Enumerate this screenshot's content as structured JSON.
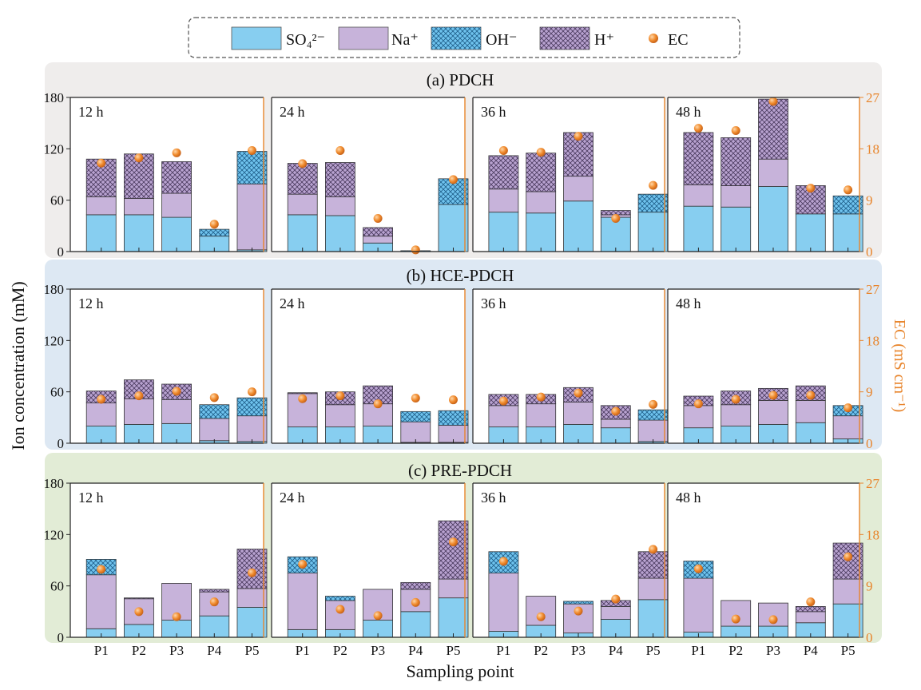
{
  "colors": {
    "so4": "#87CEF0",
    "na": "#C7B3DA",
    "oh_fill": "#6FC3EE",
    "h_fill": "#B8A2D0",
    "ec": "#F08A2C",
    "axis_right": "#E8852C",
    "bg_a": "#EFEDEC",
    "bg_b": "#DDE8F3",
    "bg_c": "#E2ECD6"
  },
  "legend": {
    "so4": "SO₄²⁻",
    "na": "Na⁺",
    "oh": "OH⁻",
    "h": "H⁺",
    "ec": "EC"
  },
  "axes": {
    "y_left_label": "Ion concentration (mM)",
    "y_right_label": "EC (mS cm⁻¹)",
    "x_label": "Sampling point"
  },
  "chart_data": {
    "type": "bar",
    "stacked": true,
    "categories": [
      "P1",
      "P2",
      "P3",
      "P4",
      "P5"
    ],
    "series_order": [
      "SO4",
      "Na",
      "OH",
      "H"
    ],
    "ylim_left": [
      0,
      180
    ],
    "yticks_left": [
      0,
      60,
      120,
      180
    ],
    "ylim_right": [
      0,
      27
    ],
    "yticks_right": [
      0,
      9,
      18,
      27
    ],
    "rows": [
      {
        "title": "(a) PDCH",
        "panels": [
          {
            "time": "12 h",
            "SO4": [
              43,
              43,
              40,
              18,
              2
            ],
            "Na": [
              21,
              19,
              28,
              0,
              77
            ],
            "OH": [
              0,
              0,
              0,
              8,
              38
            ],
            "H": [
              44,
              52,
              37,
              0,
              0
            ],
            "EC": [
              15.5,
              16.4,
              17.3,
              4.8,
              17.7
            ]
          },
          {
            "time": "24 h",
            "SO4": [
              43,
              42,
              10,
              0,
              55
            ],
            "Na": [
              24,
              22,
              8,
              0,
              0
            ],
            "OH": [
              0,
              0,
              0,
              1,
              30
            ],
            "H": [
              36,
              40,
              10,
              0,
              0
            ],
            "EC": [
              15.4,
              17.7,
              5.8,
              0.3,
              12.6
            ]
          },
          {
            "time": "36 h",
            "SO4": [
              46,
              45,
              59,
              40,
              46
            ],
            "Na": [
              27,
              25,
              29,
              3,
              0
            ],
            "OH": [
              0,
              0,
              0,
              0,
              21
            ],
            "H": [
              39,
              45,
              51,
              5,
              0
            ],
            "EC": [
              17.7,
              17.4,
              20.2,
              5.8,
              11.6
            ]
          },
          {
            "time": "48 h",
            "SO4": [
              53,
              52,
              76,
              44,
              44
            ],
            "Na": [
              25,
              25,
              32,
              0,
              0
            ],
            "OH": [
              0,
              0,
              0,
              0,
              21
            ],
            "H": [
              61,
              56,
              70,
              33,
              0
            ],
            "EC": [
              21.6,
              21.2,
              26.3,
              11.1,
              10.8
            ]
          }
        ]
      },
      {
        "title": "(b) HCE-PDCH",
        "panels": [
          {
            "time": "12 h",
            "SO4": [
              20,
              22,
              23,
              3,
              2
            ],
            "Na": [
              27,
              30,
              28,
              26,
              30
            ],
            "OH": [
              0,
              0,
              0,
              16,
              21
            ],
            "H": [
              14,
              22,
              18,
              0,
              0
            ],
            "EC": [
              7.7,
              8.3,
              9.1,
              8.0,
              9.0
            ]
          },
          {
            "time": "24 h",
            "SO4": [
              19,
              19,
              20,
              1,
              1
            ],
            "Na": [
              39,
              26,
              26,
              24,
              20
            ],
            "OH": [
              0,
              0,
              0,
              12,
              17
            ],
            "H": [
              1,
              15,
              21,
              0,
              0
            ],
            "EC": [
              7.8,
              8.3,
              6.9,
              7.9,
              7.6
            ]
          },
          {
            "time": "36 h",
            "SO4": [
              19,
              19,
              22,
              18,
              2
            ],
            "Na": [
              25,
              27,
              26,
              10,
              25
            ],
            "OH": [
              0,
              0,
              0,
              0,
              12
            ],
            "H": [
              13,
              11,
              17,
              16,
              0
            ],
            "EC": [
              7.4,
              8.1,
              8.8,
              5.6,
              6.8
            ]
          },
          {
            "time": "48 h",
            "SO4": [
              18,
              20,
              22,
              24,
              5
            ],
            "Na": [
              26,
              25,
              28,
              26,
              27
            ],
            "OH": [
              0,
              0,
              0,
              0,
              12
            ],
            "H": [
              11,
              16,
              14,
              17,
              0
            ],
            "EC": [
              6.9,
              7.7,
              8.4,
              8.4,
              6.2
            ]
          }
        ]
      },
      {
        "title": "(c) PRE-PDCH",
        "panels": [
          {
            "time": "12 h",
            "SO4": [
              10,
              15,
              20,
              25,
              35
            ],
            "Na": [
              63,
              30,
              43,
              28,
              22
            ],
            "OH": [
              18,
              0,
              0,
              0,
              0
            ],
            "H": [
              0,
              1,
              0,
              3,
              46
            ],
            "EC": [
              11.9,
              4.5,
              3.6,
              6.2,
              11.3
            ]
          },
          {
            "time": "24 h",
            "SO4": [
              9,
              9,
              20,
              30,
              46
            ],
            "Na": [
              66,
              34,
              36,
              26,
              22
            ],
            "OH": [
              19,
              5,
              0,
              0,
              0
            ],
            "H": [
              0,
              0,
              0,
              8,
              68
            ],
            "EC": [
              12.8,
              4.9,
              3.8,
              6.1,
              16.7
            ]
          },
          {
            "time": "36 h",
            "SO4": [
              7,
              14,
              5,
              21,
              44
            ],
            "Na": [
              68,
              34,
              34,
              15,
              25
            ],
            "OH": [
              25,
              0,
              3,
              0,
              0
            ],
            "H": [
              0,
              0,
              0,
              7,
              31
            ],
            "EC": [
              13.3,
              3.6,
              4.6,
              6.7,
              15.4
            ]
          },
          {
            "time": "48 h",
            "SO4": [
              6,
              13,
              13,
              17,
              39
            ],
            "Na": [
              63,
              30,
              27,
              13,
              29
            ],
            "OH": [
              20,
              0,
              0,
              0,
              0
            ],
            "H": [
              0,
              0,
              0,
              6,
              42
            ],
            "EC": [
              12.0,
              3.2,
              3.1,
              6.2,
              14.1
            ]
          }
        ]
      }
    ]
  }
}
